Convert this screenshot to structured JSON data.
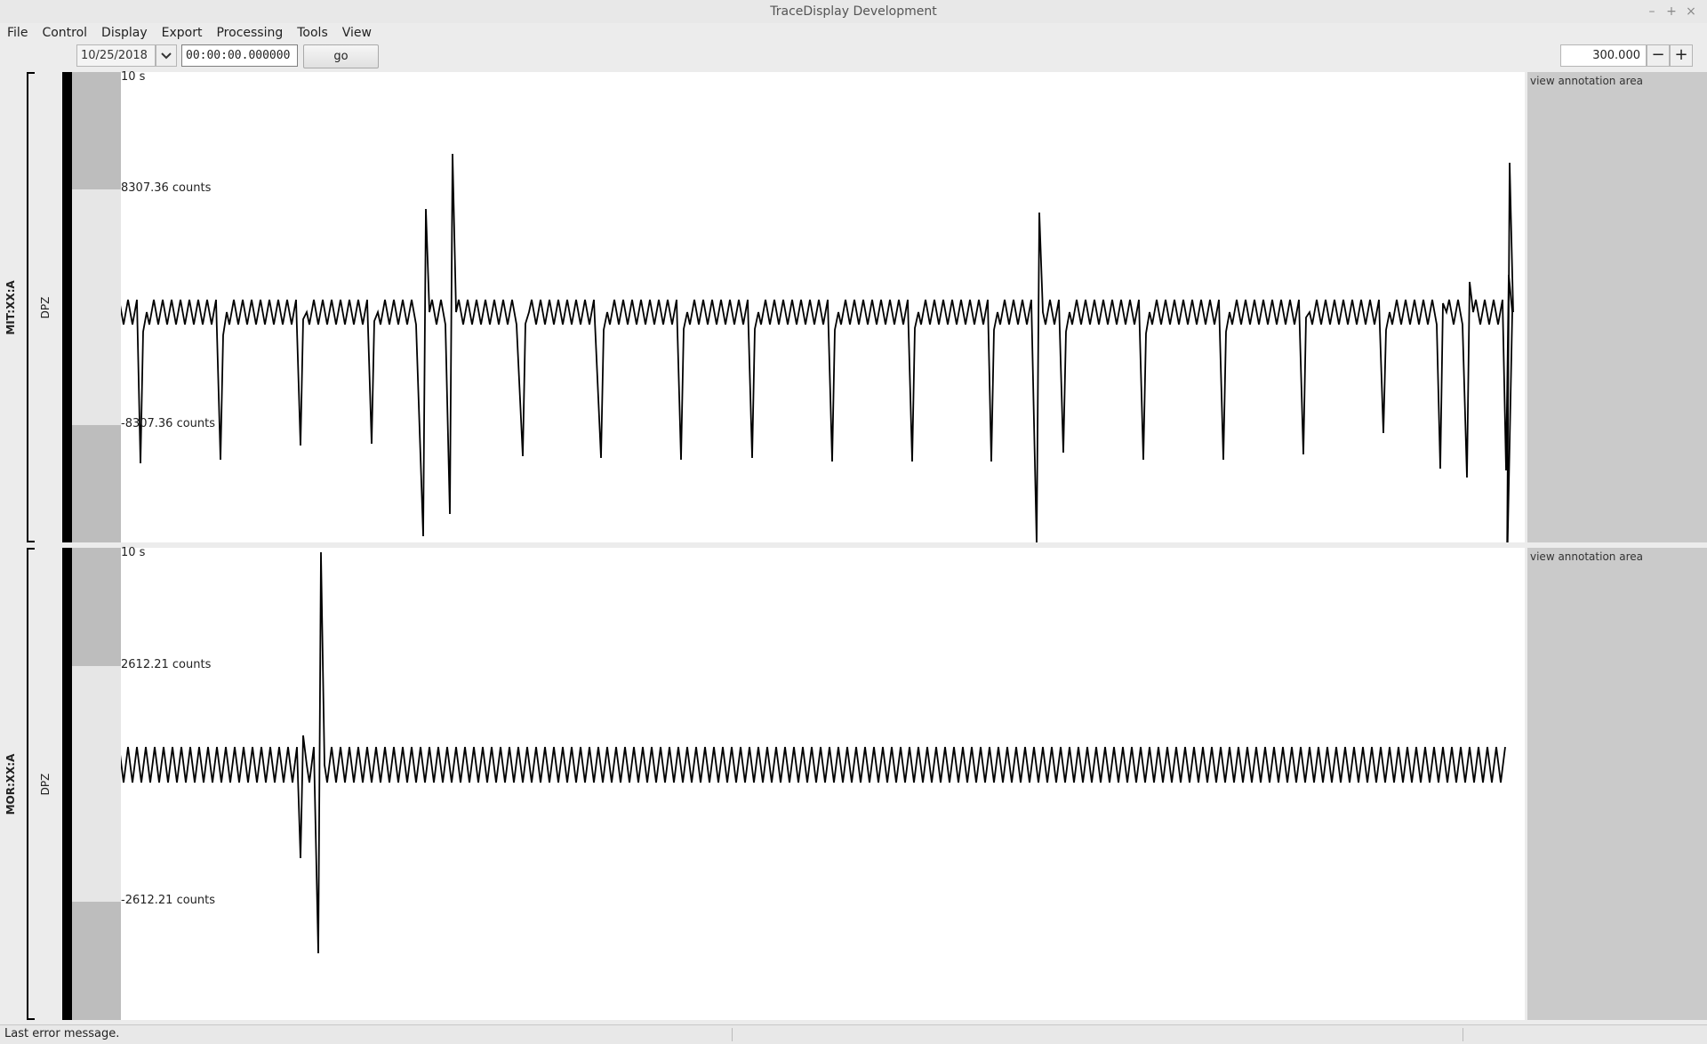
{
  "window": {
    "title": "TraceDisplay Development"
  },
  "menu": [
    "File",
    "Control",
    "Display",
    "Export",
    "Processing",
    "Tools",
    "View"
  ],
  "toolbar": {
    "date": "10/25/2018",
    "time": "00:00:00.000000",
    "go_label": "go",
    "window_length": "300.000",
    "decrease_label": "−",
    "increase_label": "+"
  },
  "panels": [
    {
      "station": "MIT:XX:A",
      "channel": "DPZ",
      "time_scale": "10 s",
      "amp_top": "8307.36 counts",
      "amp_bottom": "-8307.36 counts",
      "annotation": "view annotation area"
    },
    {
      "station": "MOR:XX:A",
      "channel": "DPZ",
      "time_scale": "10 s",
      "amp_top": "2612.21 counts",
      "amp_bottom": "-2612.21 counts",
      "annotation": "view annotation area"
    }
  ],
  "status": {
    "message": "Last error message."
  }
}
